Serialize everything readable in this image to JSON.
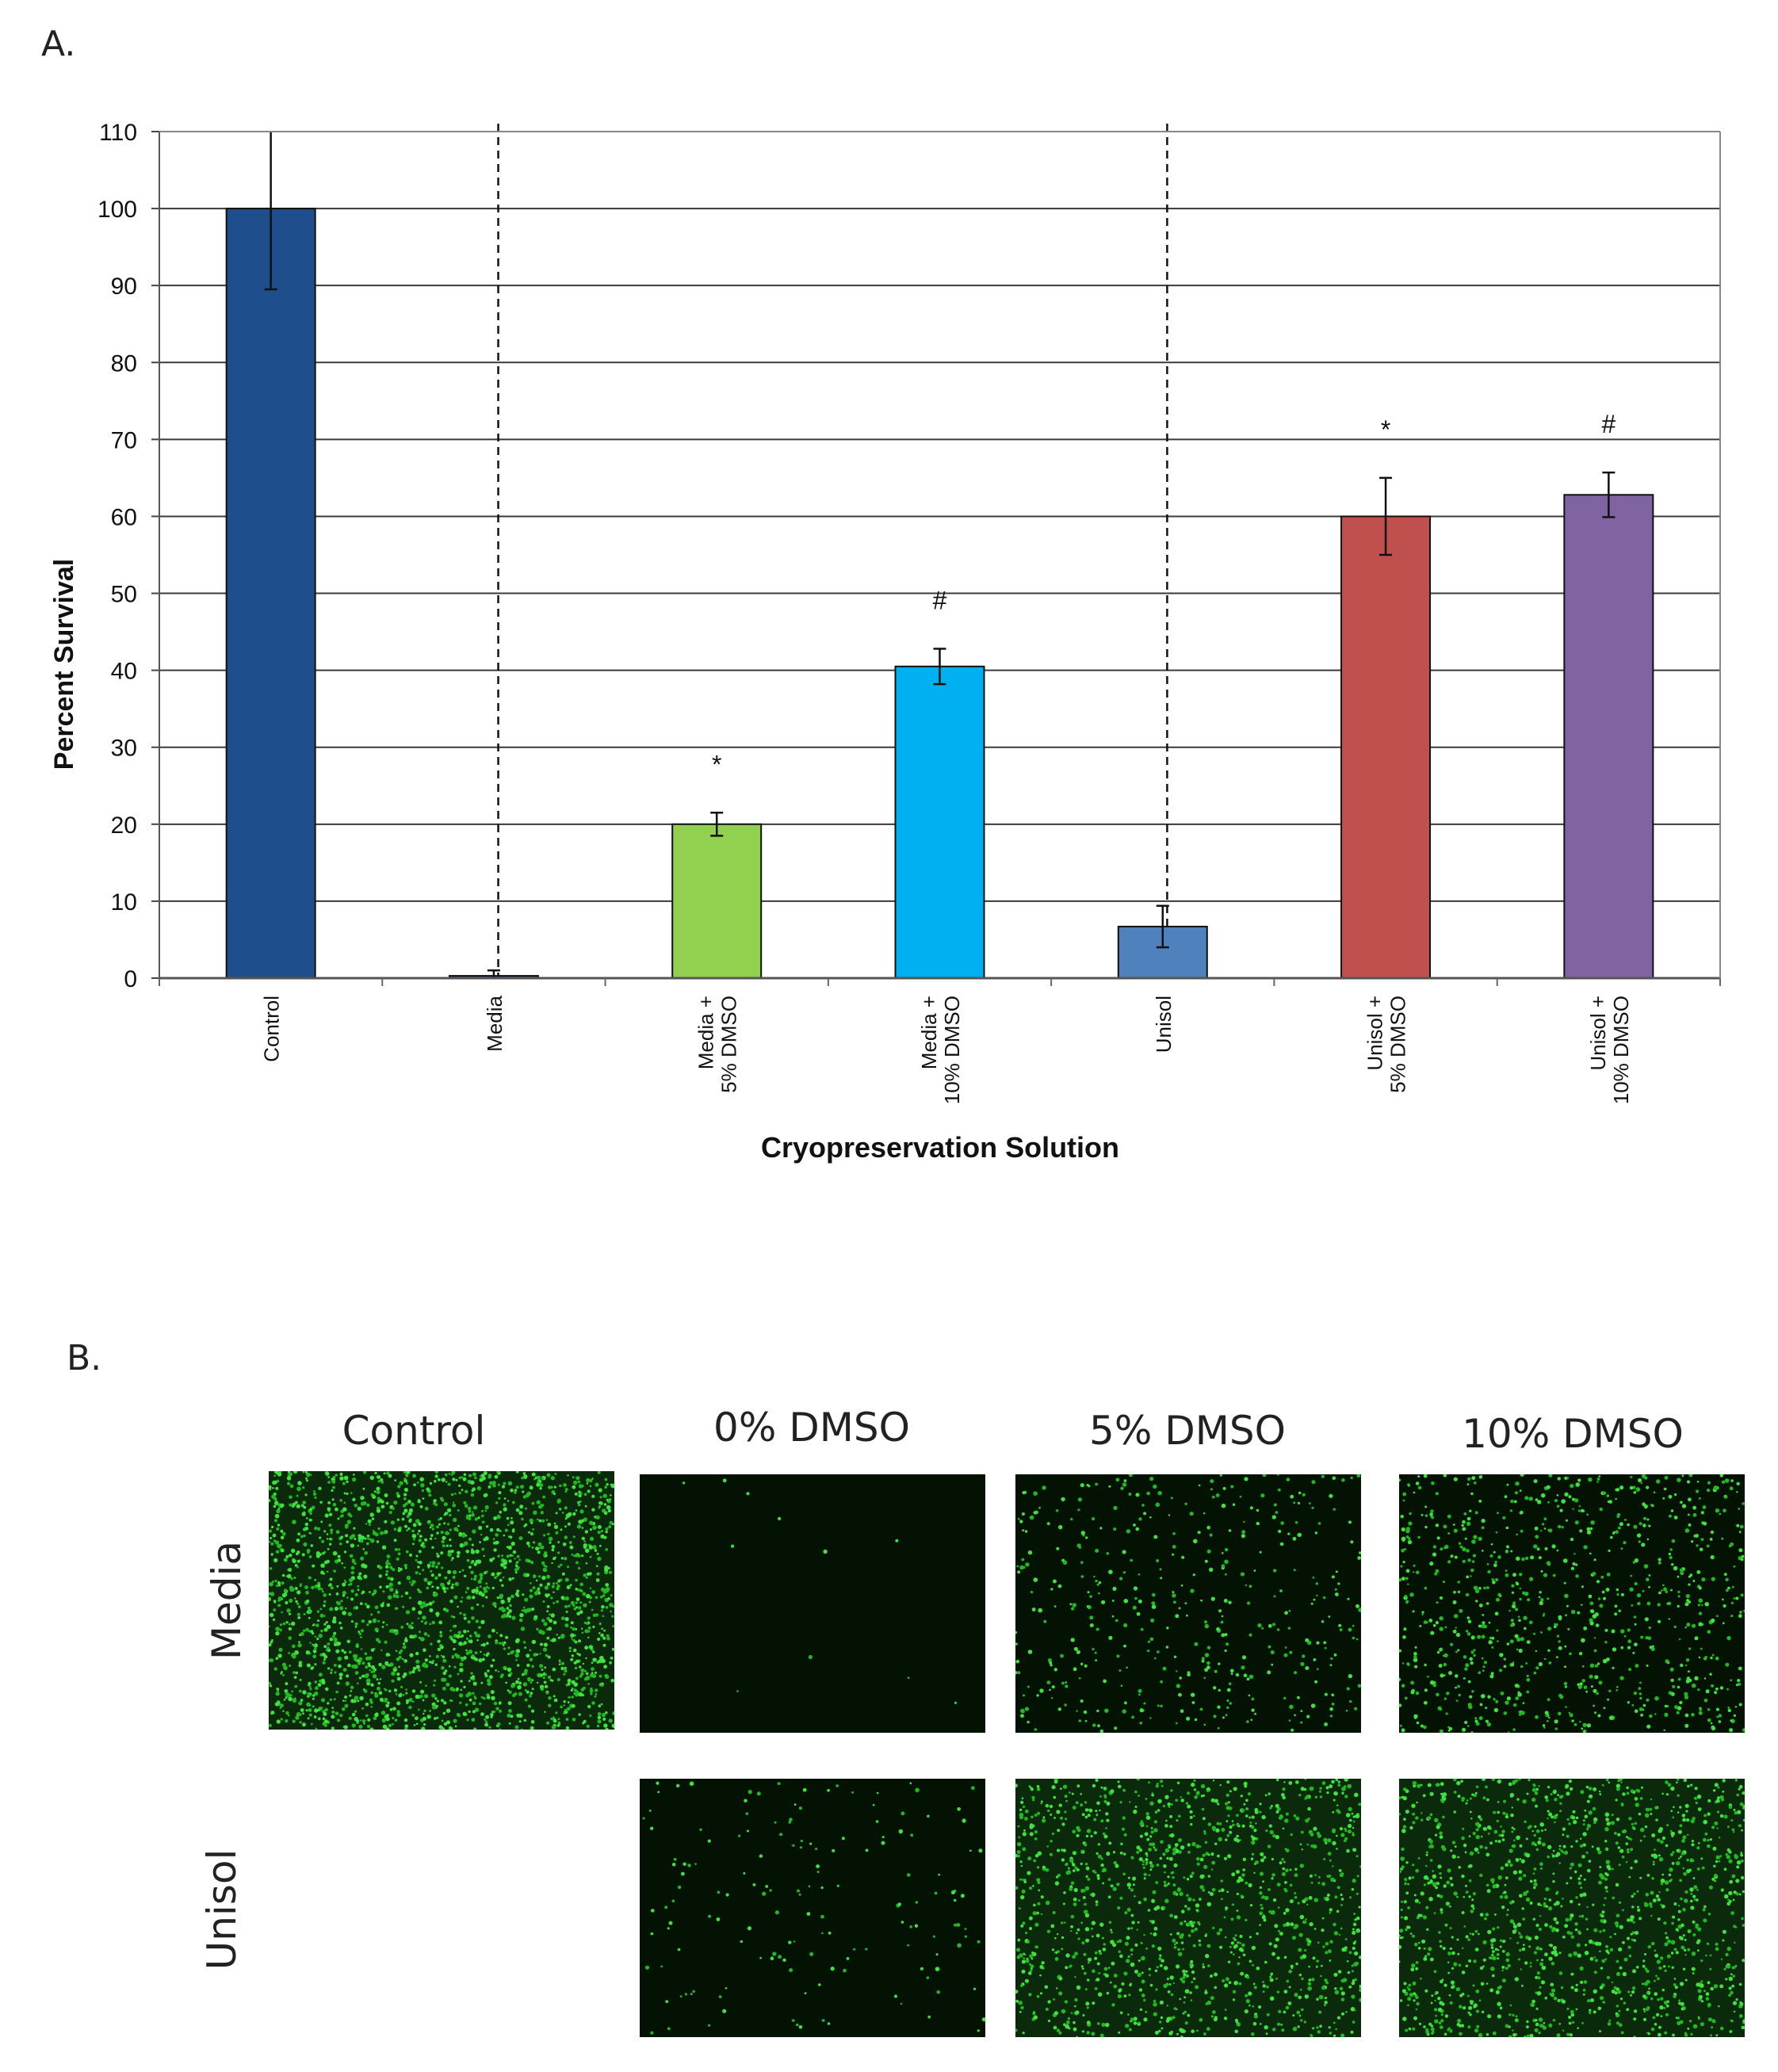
{
  "panel_a_label": "A.",
  "panel_b_label": "B.",
  "chart_data": {
    "type": "bar",
    "xlabel": "Cryopreservation Solution",
    "ylabel": "Percent Survival",
    "ylim": [
      0,
      110
    ],
    "yticks": [
      0,
      10,
      20,
      30,
      40,
      50,
      60,
      70,
      80,
      90,
      100,
      110
    ],
    "grid": true,
    "categories": [
      [
        "Control"
      ],
      [
        "Media"
      ],
      [
        "Media +",
        "5% DMSO"
      ],
      [
        "Media +",
        "10% DMSO"
      ],
      [
        "Unisol"
      ],
      [
        "Unisol +",
        "5% DMSO"
      ],
      [
        "Unisol +",
        "10% DMSO"
      ]
    ],
    "values": [
      100,
      0.3,
      20,
      40.5,
      6.7,
      60,
      62.8
    ],
    "errors": [
      10.5,
      0.7,
      1.5,
      2.3,
      2.7,
      5,
      2.9
    ],
    "colors": [
      "#1f4e8c",
      "#1f4e8c",
      "#92d050",
      "#00b0f0",
      "#4f81bd",
      "#c0504d",
      "#8064a2"
    ],
    "annotations": [
      "",
      "",
      "*",
      "#",
      "",
      "*",
      "#"
    ],
    "group_dividers_after": [
      1,
      4
    ]
  },
  "panel_b": {
    "columns": [
      "Control",
      "0% DMSO",
      "5% DMSO",
      "10% DMSO"
    ],
    "rows": [
      "Media",
      "Unisol"
    ],
    "density": {
      "media": [
        1.0,
        0.005,
        0.2,
        0.4
      ],
      "unisol": [
        0.07,
        0.6,
        0.63
      ]
    }
  }
}
